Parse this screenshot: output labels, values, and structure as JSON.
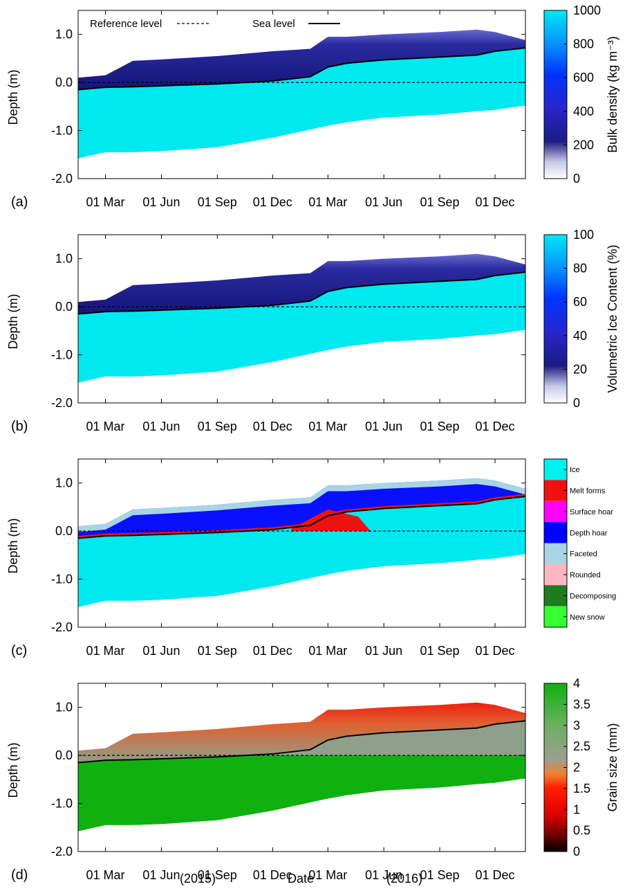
{
  "figure": {
    "xlabel": "Date",
    "year_labels": [
      "(2015)",
      "(2016)"
    ],
    "month_ticks": [
      "01 Mar",
      "01 Jun",
      "01 Sep",
      "01 Dec",
      "01 Mar",
      "01 Jun",
      "01 Sep",
      "01 Dec"
    ],
    "y_ticks": [
      "1.0",
      "0.0",
      "-1.0",
      "-2.0"
    ],
    "ylabel": "Depth (m)",
    "legend_reference": "Reference level",
    "legend_sea": "Sea level"
  },
  "chart_data": [
    {
      "panel": "(a)",
      "type": "heatmap",
      "ylabel": "Depth (m)",
      "ylim": [
        -2.0,
        1.5
      ],
      "colorbar": {
        "label": "Bulk density (kg m⁻³)",
        "ticks": [
          "1000",
          "800",
          "600",
          "400",
          "200",
          "0"
        ],
        "range": [
          0,
          1000
        ]
      },
      "legend": [
        "Reference level",
        "Sea level"
      ]
    },
    {
      "panel": "(b)",
      "type": "heatmap",
      "ylabel": "Depth (m)",
      "ylim": [
        -2.0,
        1.5
      ],
      "colorbar": {
        "label": "Volumetric Ice Content (%)",
        "ticks": [
          "100",
          "80",
          "60",
          "40",
          "20",
          "0"
        ],
        "range": [
          0,
          100
        ]
      }
    },
    {
      "panel": "(c)",
      "type": "heatmap",
      "ylabel": "Depth (m)",
      "ylim": [
        -2.0,
        1.5
      ],
      "categories": [
        "Ice",
        "Melt forms",
        "Surface hoar",
        "Depth hoar",
        "Faceted",
        "Rounded",
        "Decomposing",
        "New snow"
      ],
      "category_colors": [
        "#00f0f0",
        "#f01010",
        "#ff00ff",
        "#0000ff",
        "#a8d4e6",
        "#ffb6c1",
        "#1e7b1e",
        "#33ff33"
      ]
    },
    {
      "panel": "(d)",
      "type": "heatmap",
      "ylabel": "Depth (m)",
      "ylim": [
        -2.0,
        1.5
      ],
      "colorbar": {
        "label": "Grain size (mm)",
        "ticks": [
          "4",
          "3.5",
          "3",
          "2.5",
          "2",
          "1.5",
          "1",
          "0.5",
          "0"
        ],
        "range": [
          0,
          4
        ]
      }
    }
  ],
  "series": {
    "dates": [
      "2015-01-15",
      "2015-03-01",
      "2015-04-15",
      "2015-06-01",
      "2015-09-01",
      "2015-12-01",
      "2016-02-01",
      "2016-03-01",
      "2016-04-01",
      "2016-06-01",
      "2016-09-01",
      "2016-11-01",
      "2016-12-01",
      "2017-01-20"
    ],
    "top_surface_m": [
      0.1,
      0.15,
      0.45,
      0.48,
      0.55,
      0.65,
      0.7,
      0.95,
      0.95,
      1.0,
      1.05,
      1.1,
      1.05,
      0.88
    ],
    "sea_level_m": [
      -0.15,
      -0.1,
      -0.09,
      -0.07,
      -0.03,
      0.03,
      0.12,
      0.32,
      0.4,
      0.47,
      0.53,
      0.57,
      0.65,
      0.72
    ],
    "ice_bottom_m": [
      -1.58,
      -1.45,
      -1.45,
      -1.43,
      -1.35,
      -1.15,
      -0.98,
      -0.9,
      -0.83,
      -0.73,
      -0.67,
      -0.6,
      -0.57,
      -0.48
    ]
  },
  "colors": {
    "ice": "#00e8f0",
    "snow_dark": "#1a1a90",
    "melt": "#ee1111",
    "depth_hoar": "#0a10ff",
    "faceted": "#a8d4e6",
    "grain_green": "#10b010",
    "grain_mid": "#8fa08a"
  }
}
